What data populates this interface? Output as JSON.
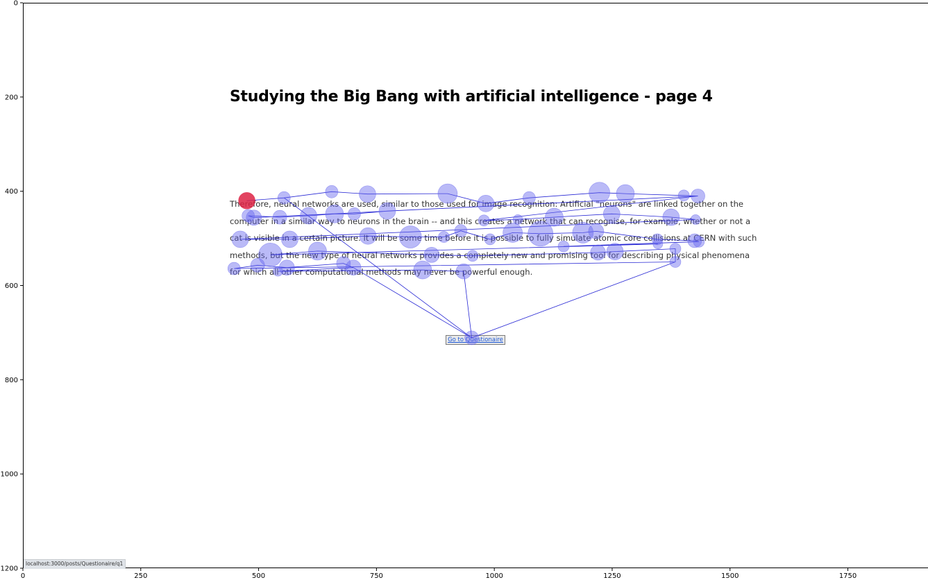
{
  "page": {
    "title": "Studying the Big Bang with artificial intelligence - page 4",
    "paragraph_lines": [
      "Therefore, neural networks are used, similar to those used for image recognition: Artificial \"neurons\" are linked together on the",
      "computer in a similar way to neurons in the brain -- and this creates a network that can recognise, for example, whether or not a",
      "cat is visible in a certain picture. It will be some time before it is possible to fully simulate atomic core collisions at CERN with such",
      "methods, but the new type of neural networks provides a completely new and promising tool for describing physical phenomena",
      "for which all other computational methods may never be powerful enough."
    ],
    "button_label": "Go to Questionaire",
    "status_url": "localhost:3000/posts/Questionaire/q1"
  },
  "chart_data": {
    "type": "scatter",
    "title": "",
    "xlabel": "",
    "ylabel": "",
    "xlim": [
      0,
      1920
    ],
    "ylim": [
      1200,
      0
    ],
    "x_ticks": [
      0,
      250,
      500,
      750,
      1000,
      1250,
      1500,
      1750
    ],
    "y_ticks": [
      0,
      200,
      400,
      600,
      800,
      1000,
      1200
    ],
    "grid": false,
    "colors": {
      "fixation": "#6666ee",
      "first_fixation": "#dd2244",
      "path": "#0000cc"
    },
    "fixations": [
      {
        "x": 475,
        "y": 420,
        "r": 12,
        "first": true
      },
      {
        "x": 554,
        "y": 414,
        "r": 9
      },
      {
        "x": 655,
        "y": 401,
        "r": 9
      },
      {
        "x": 731,
        "y": 406,
        "r": 12
      },
      {
        "x": 901,
        "y": 405,
        "r": 14
      },
      {
        "x": 982,
        "y": 426,
        "r": 12
      },
      {
        "x": 1074,
        "y": 414,
        "r": 9
      },
      {
        "x": 1223,
        "y": 403,
        "r": 15
      },
      {
        "x": 1278,
        "y": 405,
        "r": 13
      },
      {
        "x": 1402,
        "y": 409,
        "r": 8
      },
      {
        "x": 1432,
        "y": 410,
        "r": 10
      },
      {
        "x": 478,
        "y": 452,
        "r": 9
      },
      {
        "x": 490,
        "y": 456,
        "r": 11
      },
      {
        "x": 545,
        "y": 455,
        "r": 10
      },
      {
        "x": 606,
        "y": 452,
        "r": 12
      },
      {
        "x": 661,
        "y": 448,
        "r": 13
      },
      {
        "x": 703,
        "y": 448,
        "r": 9
      },
      {
        "x": 773,
        "y": 442,
        "r": 12
      },
      {
        "x": 978,
        "y": 462,
        "r": 8
      },
      {
        "x": 1050,
        "y": 460,
        "r": 7
      },
      {
        "x": 1127,
        "y": 455,
        "r": 13
      },
      {
        "x": 1249,
        "y": 448,
        "r": 12
      },
      {
        "x": 1375,
        "y": 455,
        "r": 12
      },
      {
        "x": 1427,
        "y": 460,
        "r": 7
      },
      {
        "x": 461,
        "y": 502,
        "r": 12
      },
      {
        "x": 566,
        "y": 502,
        "r": 12
      },
      {
        "x": 732,
        "y": 495,
        "r": 12
      },
      {
        "x": 822,
        "y": 497,
        "r": 16
      },
      {
        "x": 893,
        "y": 497,
        "r": 8
      },
      {
        "x": 929,
        "y": 484,
        "r": 9
      },
      {
        "x": 991,
        "y": 502,
        "r": 8
      },
      {
        "x": 1039,
        "y": 488,
        "r": 14
      },
      {
        "x": 1098,
        "y": 490,
        "r": 18
      },
      {
        "x": 1188,
        "y": 488,
        "r": 15
      },
      {
        "x": 1216,
        "y": 485,
        "r": 11
      },
      {
        "x": 1147,
        "y": 517,
        "r": 8
      },
      {
        "x": 1346,
        "y": 502,
        "r": 8
      },
      {
        "x": 1347,
        "y": 512,
        "r": 7
      },
      {
        "x": 1425,
        "y": 505,
        "r": 10
      },
      {
        "x": 1434,
        "y": 507,
        "r": 8
      },
      {
        "x": 1384,
        "y": 522,
        "r": 8
      },
      {
        "x": 525,
        "y": 535,
        "r": 17
      },
      {
        "x": 625,
        "y": 527,
        "r": 13
      },
      {
        "x": 867,
        "y": 535,
        "r": 11
      },
      {
        "x": 954,
        "y": 537,
        "r": 8
      },
      {
        "x": 1220,
        "y": 530,
        "r": 11
      },
      {
        "x": 1256,
        "y": 528,
        "r": 12
      },
      {
        "x": 1384,
        "y": 550,
        "r": 8
      },
      {
        "x": 448,
        "y": 564,
        "r": 9
      },
      {
        "x": 498,
        "y": 557,
        "r": 10
      },
      {
        "x": 560,
        "y": 562,
        "r": 11
      },
      {
        "x": 680,
        "y": 553,
        "r": 10
      },
      {
        "x": 701,
        "y": 562,
        "r": 11
      },
      {
        "x": 541,
        "y": 570,
        "r": 7
      },
      {
        "x": 848,
        "y": 567,
        "r": 13
      },
      {
        "x": 935,
        "y": 570,
        "r": 11
      },
      {
        "x": 952,
        "y": 711,
        "r": 10
      }
    ],
    "path": [
      [
        475,
        420
      ],
      [
        554,
        414
      ],
      [
        655,
        401
      ],
      [
        731,
        406
      ],
      [
        901,
        405
      ],
      [
        982,
        426
      ],
      [
        1074,
        414
      ],
      [
        1223,
        403
      ],
      [
        1278,
        405
      ],
      [
        1402,
        409
      ],
      [
        1432,
        410
      ],
      [
        490,
        456
      ],
      [
        478,
        452
      ],
      [
        545,
        455
      ],
      [
        606,
        452
      ],
      [
        661,
        448
      ],
      [
        703,
        448
      ],
      [
        773,
        442
      ],
      [
        1432,
        410
      ],
      [
        978,
        462
      ],
      [
        1050,
        460
      ],
      [
        1127,
        455
      ],
      [
        1249,
        448
      ],
      [
        1375,
        455
      ],
      [
        1427,
        460
      ],
      [
        461,
        502
      ],
      [
        566,
        502
      ],
      [
        732,
        495
      ],
      [
        822,
        497
      ],
      [
        893,
        497
      ],
      [
        929,
        484
      ],
      [
        991,
        502
      ],
      [
        1039,
        488
      ],
      [
        1098,
        490
      ],
      [
        1188,
        488
      ],
      [
        1216,
        485
      ],
      [
        1346,
        502
      ],
      [
        1425,
        505
      ],
      [
        1434,
        507
      ],
      [
        1147,
        517
      ],
      [
        1347,
        512
      ],
      [
        525,
        535
      ],
      [
        625,
        527
      ],
      [
        867,
        535
      ],
      [
        954,
        537
      ],
      [
        1220,
        530
      ],
      [
        1256,
        528
      ],
      [
        1384,
        522
      ],
      [
        1384,
        550
      ],
      [
        448,
        564
      ],
      [
        498,
        557
      ],
      [
        560,
        562
      ],
      [
        680,
        553
      ],
      [
        701,
        562
      ],
      [
        541,
        570
      ],
      [
        848,
        567
      ],
      [
        935,
        570
      ],
      [
        952,
        711
      ],
      [
        554,
        414
      ],
      [
        952,
        711
      ],
      [
        1384,
        550
      ],
      [
        952,
        711
      ],
      [
        701,
        562
      ]
    ]
  }
}
